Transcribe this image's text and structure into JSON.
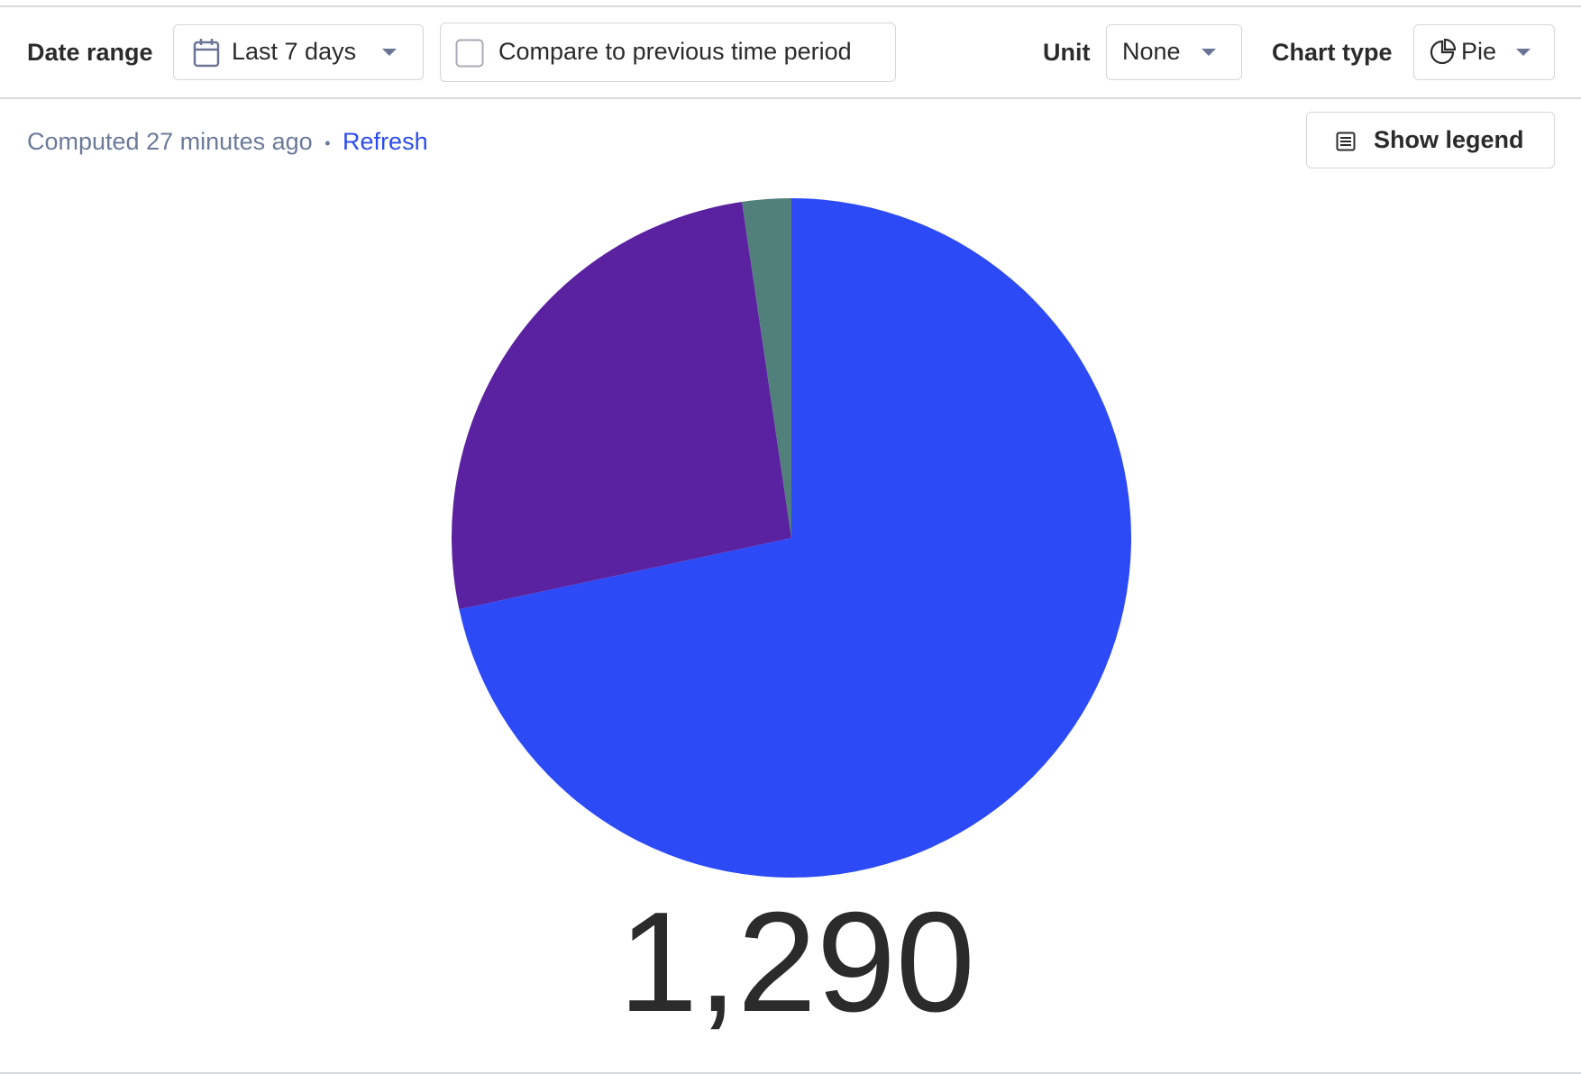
{
  "toolbar": {
    "date_range_label": "Date range",
    "date_range_value": "Last 7 days",
    "compare_label": "Compare to previous time period",
    "unit_label": "Unit",
    "unit_value": "None",
    "chart_type_label": "Chart type",
    "chart_type_value": "Pie"
  },
  "status": {
    "computed": "Computed 27 minutes ago",
    "separator": "•",
    "refresh": "Refresh"
  },
  "show_legend": "Show legend",
  "chart_data": {
    "type": "pie",
    "values": [
      924,
      336,
      30
    ],
    "colors": [
      "#2c4af6",
      "#5a21a0",
      "#517f7a"
    ],
    "total": {
      "value": 1290,
      "label": "1,290"
    }
  }
}
